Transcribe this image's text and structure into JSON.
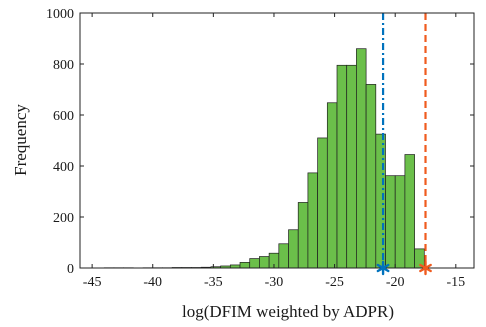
{
  "chart_data": {
    "type": "bar",
    "title": "",
    "xlabel": "log(DFIM weighted by ADPR)",
    "ylabel": "Frequency",
    "xlim": [
      -46,
      -13.5
    ],
    "ylim": [
      0,
      1000
    ],
    "xticks": [
      -45,
      -40,
      -35,
      -30,
      -25,
      -20,
      -15
    ],
    "yticks": [
      0,
      200,
      400,
      600,
      800,
      1000
    ],
    "grid": false,
    "legend": "none",
    "bin_width": 0.8,
    "bins": [
      {
        "x0": -44.0,
        "value": 1
      },
      {
        "x0": -43.2,
        "value": 1
      },
      {
        "x0": -42.4,
        "value": 1
      },
      {
        "x0": -41.6,
        "value": 0
      },
      {
        "x0": -40.8,
        "value": 1
      },
      {
        "x0": -40.0,
        "value": 1
      },
      {
        "x0": -39.2,
        "value": 1
      },
      {
        "x0": -38.4,
        "value": 2
      },
      {
        "x0": -37.6,
        "value": 2
      },
      {
        "x0": -36.8,
        "value": 2
      },
      {
        "x0": -36.0,
        "value": 3
      },
      {
        "x0": -35.2,
        "value": 5
      },
      {
        "x0": -34.4,
        "value": 8
      },
      {
        "x0": -33.6,
        "value": 12
      },
      {
        "x0": -32.8,
        "value": 22
      },
      {
        "x0": -32.0,
        "value": 37
      },
      {
        "x0": -31.2,
        "value": 45
      },
      {
        "x0": -30.4,
        "value": 58
      },
      {
        "x0": -29.6,
        "value": 95
      },
      {
        "x0": -28.8,
        "value": 150
      },
      {
        "x0": -28.0,
        "value": 257
      },
      {
        "x0": -27.2,
        "value": 373
      },
      {
        "x0": -26.4,
        "value": 510
      },
      {
        "x0": -25.6,
        "value": 648
      },
      {
        "x0": -24.8,
        "value": 795
      },
      {
        "x0": -24.0,
        "value": 795
      },
      {
        "x0": -23.2,
        "value": 860
      },
      {
        "x0": -22.4,
        "value": 720
      },
      {
        "x0": -21.6,
        "value": 525
      },
      {
        "x0": -20.8,
        "value": 362
      },
      {
        "x0": -20.0,
        "value": 362
      },
      {
        "x0": -19.2,
        "value": 445
      },
      {
        "x0": -18.4,
        "value": 75
      }
    ],
    "markers": [
      {
        "x": -21.0,
        "y": 0,
        "color": "#0072bd",
        "line_style": "dash-dot",
        "symbol": "asterisk"
      },
      {
        "x": -17.5,
        "y": 0,
        "color": "#ef5b1f",
        "line_style": "dashed",
        "symbol": "asterisk"
      }
    ],
    "bar_color": "#6bbf4a",
    "bar_edge_color": "#1f1f1f"
  }
}
